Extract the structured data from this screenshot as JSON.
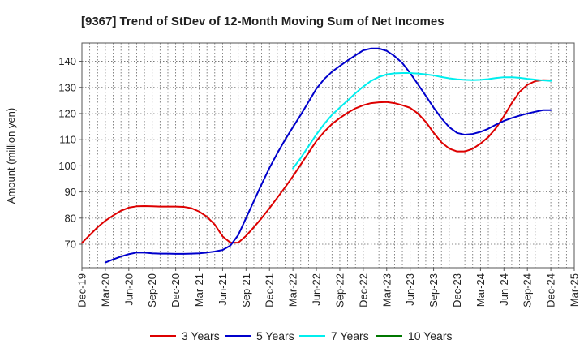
{
  "chart_data": {
    "type": "line",
    "title": "[9367]  Trend of StDev of 12-Month Moving Sum of Net Incomes",
    "xlabel": "",
    "ylabel": "Amount (million yen)",
    "ylim": [
      61,
      147
    ],
    "yticks": [
      70,
      80,
      90,
      100,
      110,
      120,
      130,
      140
    ],
    "xlim": [
      "Dec-19",
      "Mar-25"
    ],
    "x_tick_labels": [
      "Dec-19",
      "Mar-20",
      "Jun-20",
      "Sep-20",
      "Dec-20",
      "Mar-21",
      "Jun-21",
      "Sep-21",
      "Dec-21",
      "Mar-22",
      "Jun-22",
      "Sep-22",
      "Dec-22",
      "Mar-23",
      "Jun-23",
      "Sep-23",
      "Dec-23",
      "Mar-24",
      "Jun-24",
      "Sep-24",
      "Dec-24",
      "Mar-25"
    ],
    "grid": true,
    "legend_position": "bottom",
    "series": [
      {
        "name": "3 Years",
        "color": "#dd0000",
        "x": [
          "Dec-19",
          "Jan-20",
          "Feb-20",
          "Mar-20",
          "Apr-20",
          "May-20",
          "Jun-20",
          "Jul-20",
          "Aug-20",
          "Sep-20",
          "Oct-20",
          "Nov-20",
          "Dec-20",
          "Jan-21",
          "Feb-21",
          "Mar-21",
          "Apr-21",
          "May-21",
          "Jun-21",
          "Jul-21",
          "Aug-21",
          "Sep-21",
          "Oct-21",
          "Nov-21",
          "Dec-21",
          "Jan-22",
          "Feb-22",
          "Mar-22",
          "Apr-22",
          "May-22",
          "Jun-22",
          "Jul-22",
          "Aug-22",
          "Sep-22",
          "Oct-22",
          "Nov-22",
          "Dec-22",
          "Jan-23",
          "Feb-23",
          "Mar-23",
          "Apr-23",
          "May-23",
          "Jun-23",
          "Jul-23",
          "Aug-23",
          "Sep-23",
          "Oct-23",
          "Nov-23",
          "Dec-23",
          "Jan-24",
          "Feb-24",
          "Mar-24",
          "Apr-24",
          "May-24",
          "Jun-24",
          "Jul-24",
          "Aug-24",
          "Sep-24",
          "Oct-24",
          "Nov-24",
          "Dec-24"
        ],
        "values": [
          70.5,
          73.5,
          76.5,
          79.0,
          81.0,
          82.8,
          84.0,
          84.5,
          84.6,
          84.5,
          84.4,
          84.4,
          84.4,
          84.3,
          83.8,
          82.5,
          80.5,
          77.5,
          73.0,
          70.6,
          70.6,
          73.2,
          76.5,
          80.0,
          83.8,
          87.8,
          91.8,
          96.0,
          100.5,
          105.0,
          109.5,
          113.0,
          116.0,
          118.3,
          120.3,
          122.0,
          123.2,
          124.0,
          124.3,
          124.4,
          124.0,
          123.2,
          122.2,
          120.0,
          116.8,
          112.7,
          109.0,
          106.6,
          105.5,
          105.5,
          106.5,
          108.5,
          111.0,
          114.5,
          119.0,
          124.0,
          128.3,
          131.0,
          132.4,
          132.8,
          132.7
        ]
      },
      {
        "name": "5 Years",
        "color": "#0000cc",
        "x": [
          "Mar-20",
          "Apr-20",
          "May-20",
          "Jun-20",
          "Jul-20",
          "Aug-20",
          "Sep-20",
          "Oct-20",
          "Nov-20",
          "Dec-20",
          "Jan-21",
          "Feb-21",
          "Mar-21",
          "Apr-21",
          "May-21",
          "Jun-21",
          "Jul-21",
          "Aug-21",
          "Sep-21",
          "Oct-21",
          "Nov-21",
          "Dec-21",
          "Jan-22",
          "Feb-22",
          "Mar-22",
          "Apr-22",
          "May-22",
          "Jun-22",
          "Jul-22",
          "Aug-22",
          "Sep-22",
          "Oct-22",
          "Nov-22",
          "Dec-22",
          "Jan-23",
          "Feb-23",
          "Mar-23",
          "Apr-23",
          "May-23",
          "Jun-23",
          "Jul-23",
          "Aug-23",
          "Sep-23",
          "Oct-23",
          "Nov-23",
          "Dec-23",
          "Jan-24",
          "Feb-24",
          "Mar-24",
          "Apr-24",
          "May-24",
          "Jun-24",
          "Jul-24",
          "Aug-24",
          "Sep-24",
          "Oct-24",
          "Nov-24",
          "Dec-24"
        ],
        "values": [
          63.0,
          64.2,
          65.3,
          66.2,
          66.8,
          66.8,
          66.5,
          66.4,
          66.4,
          66.3,
          66.3,
          66.4,
          66.5,
          66.8,
          67.2,
          67.8,
          69.5,
          73.5,
          80.0,
          86.5,
          93.0,
          99.2,
          104.8,
          110.0,
          114.8,
          119.5,
          124.5,
          129.5,
          133.2,
          136.0,
          138.2,
          140.3,
          142.3,
          144.2,
          144.9,
          144.9,
          144.0,
          142.0,
          139.3,
          135.5,
          131.2,
          126.8,
          122.3,
          118.2,
          114.8,
          112.6,
          111.9,
          112.2,
          113.0,
          114.2,
          115.8,
          117.2,
          118.3,
          119.2,
          120.0,
          120.7,
          121.3,
          121.3
        ]
      },
      {
        "name": "7 Years",
        "color": "#00eeee",
        "x": [
          "Mar-22",
          "Apr-22",
          "May-22",
          "Jun-22",
          "Jul-22",
          "Aug-22",
          "Sep-22",
          "Oct-22",
          "Nov-22",
          "Dec-22",
          "Jan-23",
          "Feb-23",
          "Mar-23",
          "Apr-23",
          "May-23",
          "Jun-23",
          "Jul-23",
          "Aug-23",
          "Sep-23",
          "Oct-23",
          "Nov-23",
          "Dec-23",
          "Jan-24",
          "Feb-24",
          "Mar-24",
          "Apr-24",
          "May-24",
          "Jun-24",
          "Jul-24",
          "Aug-24",
          "Sep-24",
          "Oct-24",
          "Nov-24",
          "Dec-24"
        ],
        "values": [
          99.0,
          103.0,
          107.5,
          112.0,
          116.0,
          119.5,
          122.3,
          125.0,
          127.8,
          130.3,
          132.5,
          134.0,
          135.0,
          135.4,
          135.5,
          135.5,
          135.3,
          135.0,
          134.6,
          134.0,
          133.5,
          133.1,
          132.9,
          132.8,
          132.9,
          133.2,
          133.6,
          133.9,
          133.9,
          133.7,
          133.3,
          133.0,
          132.7,
          132.5
        ]
      },
      {
        "name": "10 Years",
        "color": "#007700",
        "x": [],
        "values": []
      }
    ]
  }
}
